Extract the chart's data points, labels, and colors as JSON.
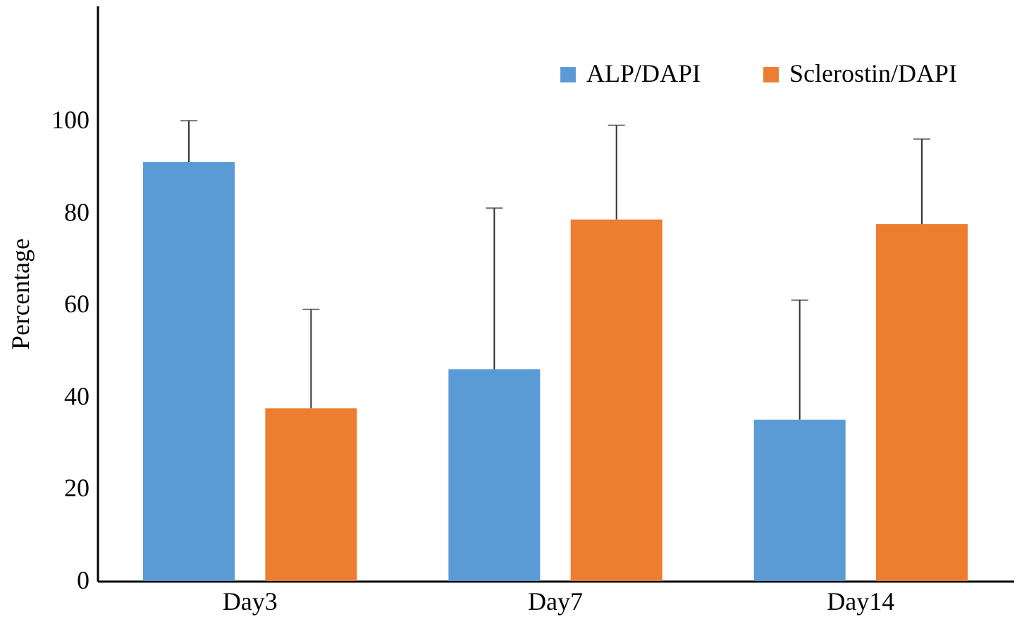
{
  "chart_data": {
    "type": "bar",
    "ylabel": "Percentage",
    "categories": [
      "Day3",
      "Day7",
      "Day14"
    ],
    "series": [
      {
        "name": "ALP/DAPI",
        "color": "#5b9bd5",
        "values": [
          91,
          46,
          35
        ],
        "errors": [
          [
            91,
            100
          ],
          [
            46,
            81
          ],
          [
            35,
            61
          ]
        ]
      },
      {
        "name": "Sclerostin/DAPI",
        "color": "#ed7d31",
        "values": [
          37.5,
          78.5,
          77.5
        ],
        "errors": [
          [
            37.5,
            59
          ],
          [
            78.5,
            99
          ],
          [
            77.5,
            96
          ]
        ]
      }
    ],
    "ylim": [
      0,
      125
    ],
    "yticks": [
      0,
      20,
      40,
      60,
      80,
      100
    ],
    "grid": false,
    "legend": "top right"
  }
}
